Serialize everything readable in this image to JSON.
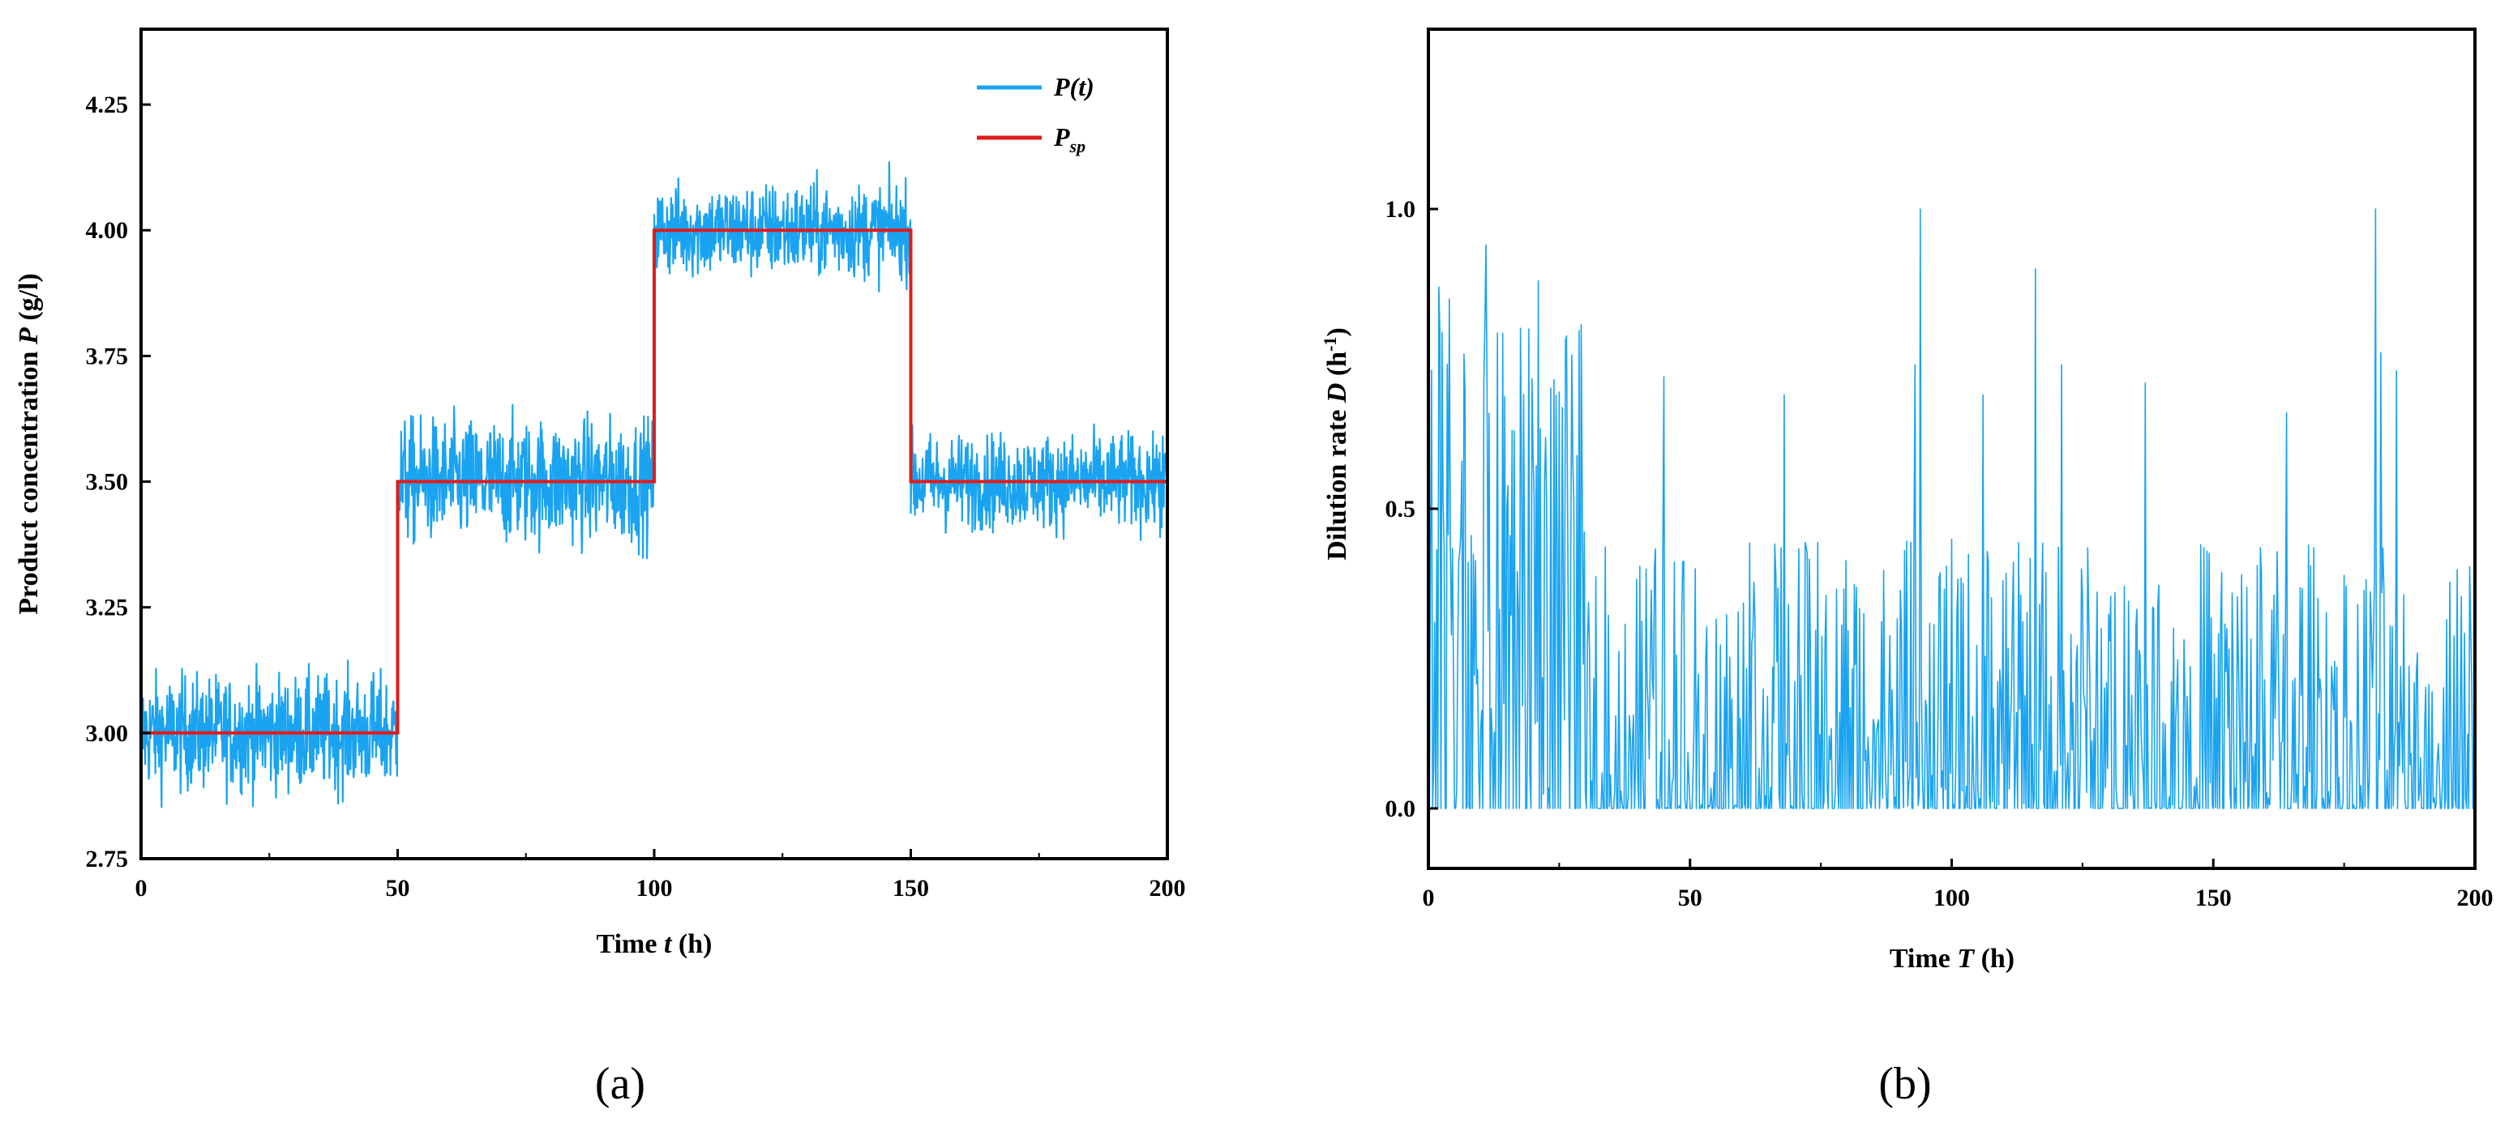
{
  "chart_data": [
    {
      "panel": "(a)",
      "type": "line",
      "title": "",
      "xlabel": {
        "text": "Time ",
        "var": "t",
        "unit": " (h)"
      },
      "ylabel": {
        "text": "Product concentration ",
        "var": "P",
        "unit": " (g/l)"
      },
      "xlim": [
        0,
        200
      ],
      "ylim": [
        2.75,
        4.4
      ],
      "xticks": [
        "0",
        "50",
        "100",
        "150",
        "200"
      ],
      "yticks": [
        "2.75",
        "3.00",
        "3.25",
        "3.50",
        "3.75",
        "4.00",
        "4.25"
      ],
      "grid": false,
      "legend": "top-right",
      "legend_entries": [
        {
          "label": "P(t)",
          "color": "#1aa3f0"
        },
        {
          "label": "P",
          "sub": "sp",
          "color": "#e01b1b"
        }
      ],
      "series": [
        {
          "name": "P(t)",
          "color": "#1aa3f0",
          "style": "noisy measurement around setpoint",
          "segments": [
            {
              "x": [
                0,
                50
              ],
              "mean": 3.0,
              "min": 2.77,
              "max": 3.19
            },
            {
              "x": [
                50,
                100
              ],
              "mean": 3.5,
              "min": 3.31,
              "max": 3.75
            },
            {
              "x": [
                100,
                150
              ],
              "mean": 4.0,
              "min": 3.81,
              "max": 4.17
            },
            {
              "x": [
                150,
                200
              ],
              "mean": 3.5,
              "min": 3.31,
              "max": 3.62
            }
          ]
        },
        {
          "name": "Psp",
          "color": "#e01b1b",
          "x": [
            0,
            50,
            50,
            100,
            100,
            150,
            150,
            200
          ],
          "y": [
            3.0,
            3.0,
            3.5,
            3.5,
            4.0,
            4.0,
            3.5,
            3.5
          ]
        }
      ]
    },
    {
      "panel": "(b)",
      "type": "line",
      "title": "",
      "xlabel": {
        "text": "Time ",
        "var": "T",
        "unit": " (h)"
      },
      "ylabel": {
        "text": "Dilution rate ",
        "var": "D",
        "unit": " (h",
        "sup": "-1",
        "close": ")"
      },
      "xlim": [
        0,
        200
      ],
      "ylim": [
        -0.1,
        1.3
      ],
      "xticks": [
        "0",
        "50",
        "100",
        "150",
        "200"
      ],
      "yticks": [
        "0.0",
        "0.5",
        "1.0"
      ],
      "grid": false,
      "series": [
        {
          "name": "D",
          "color": "#1aa3f0",
          "style": "dense spiky signal",
          "range": [
            0.0,
            1.0
          ],
          "early_band": {
            "x": [
              0,
              30
            ],
            "min": 0.0,
            "max": 0.95
          },
          "later_band": {
            "x": [
              30,
              200
            ],
            "min": 0.0,
            "max": 0.6
          },
          "peaks": [
            {
              "x": 2,
              "y": 0.87
            },
            {
              "x": 4,
              "y": 0.85
            },
            {
              "x": 11,
              "y": 0.94
            },
            {
              "x": 21,
              "y": 0.88
            },
            {
              "x": 45,
              "y": 0.72
            },
            {
              "x": 68,
              "y": 0.69
            },
            {
              "x": 93,
              "y": 0.74
            },
            {
              "x": 94,
              "y": 1.0
            },
            {
              "x": 106,
              "y": 0.69
            },
            {
              "x": 116,
              "y": 0.9
            },
            {
              "x": 121,
              "y": 0.74
            },
            {
              "x": 137,
              "y": 0.71
            },
            {
              "x": 164,
              "y": 0.66
            },
            {
              "x": 181,
              "y": 1.0
            },
            {
              "x": 182,
              "y": 0.76
            },
            {
              "x": 185,
              "y": 0.73
            }
          ]
        }
      ]
    }
  ]
}
